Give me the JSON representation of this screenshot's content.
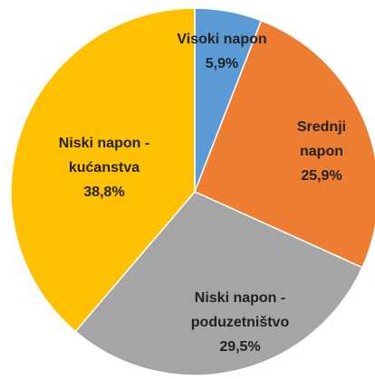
{
  "chart_data": {
    "type": "pie",
    "categories": [
      "Visoki napon",
      "Srednji napon",
      "Niski napon - poduzetništvo",
      "Niski napon - kućanstva"
    ],
    "values": [
      5.9,
      25.9,
      29.5,
      38.8
    ],
    "value_labels": [
      "5,9%",
      "25,9%",
      "29,5%",
      "38,8%"
    ],
    "colors": [
      "#5b9bd5",
      "#ed7d31",
      "#a5a5a5",
      "#ffc000"
    ]
  }
}
